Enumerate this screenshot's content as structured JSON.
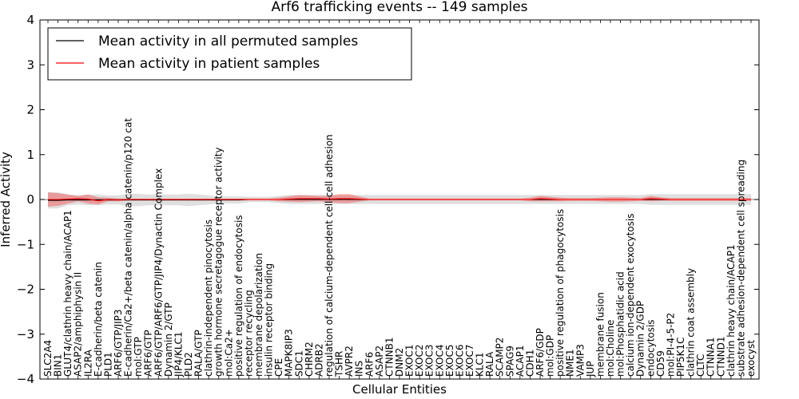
{
  "chart_data": {
    "type": "line",
    "title": "Arf6 trafficking events -- 149 samples",
    "xlabel": "Cellular Entities",
    "ylabel": "Inferred Activity",
    "ylim": [
      -4,
      4
    ],
    "yticks": [
      -4,
      -3,
      -2,
      -1,
      0,
      1,
      2,
      3,
      4
    ],
    "ytick_labels": [
      "−4",
      "−3",
      "−2",
      "−1",
      "0",
      "1",
      "2",
      "3",
      "4"
    ],
    "legend_position": "top-left",
    "categories": [
      "SLC2A4",
      "BIN1",
      "GLUT4/clathrin heavy chain/ACAP1",
      "ASAP2/amphiphysin II",
      "IL2RA",
      "E-cadherin/beta catenin",
      "PLD1",
      "ARF6/GTP/JIP3",
      "E-cadherin/Ca2+/beta catenin/alpha catenin/p120 cat",
      "mol:GTP",
      "ARF6/GTP",
      "ARF6/GTP/ARF6/GTP/JIP4/Dynactin Complex",
      "Dynamin 2/GTP",
      "JIP4/KLC1",
      "PLD2",
      "RALA/GTP",
      "clathrin-independent pinocytosis",
      "growth hormone secretagogue receptor activity",
      "mol:Ca2+",
      "positive regulation of endocytosis",
      "receptor recycling",
      "membrane depolarization",
      "insulin receptor binding",
      "CPE",
      "MAPK8IP3",
      "SDC1",
      "CHRM2",
      "ADRB2",
      "regulation of calcium-dependent cell-cell adhesion",
      "TSHR",
      "AVPR2",
      "INS",
      "ARF6",
      "ASAP2",
      "CTNNB1",
      "DNM2",
      "EXOC1",
      "EXOC2",
      "EXOC3",
      "EXOC4",
      "EXOC5",
      "EXOC6",
      "EXOC7",
      "KLC1",
      "RALA",
      "SCAMP2",
      "SPAG9",
      "ACAP1",
      "CDH1",
      "ARF6/GDP",
      "mol:GDP",
      "positive regulation of phagocytosis",
      "NME1",
      "VAMP3",
      "JUP",
      "membrane fusion",
      "mol:Choline",
      "mol:Phosphatidic acid",
      "calcium ion-dependent exocytosis",
      "Dynamin 2/GDP",
      "endocytosis",
      "CD59",
      "mol:PI-4-5-P2",
      "PIP5K1C",
      "clathrin coat assembly",
      "CLTC",
      "CTNNA1",
      "CTNND1",
      "clathrin heavy chain/ACAP1",
      "substrate adhesion-dependent cell spreading",
      "exocyst"
    ],
    "series": [
      {
        "name": "Mean activity in all permuted samples",
        "color": "#000000",
        "values": [
          -0.02,
          -0.02,
          -0.01,
          -0.01,
          -0.01,
          -0.01,
          -0.01,
          -0.01,
          -0.01,
          -0.01,
          -0.01,
          -0.01,
          -0.01,
          -0.01,
          -0.01,
          -0.01,
          -0.01,
          -0.01,
          -0.01,
          -0.01,
          0.0,
          0.0,
          0.0,
          0.0,
          0.0,
          0.0,
          0.0,
          0.0,
          0.0,
          0.0,
          0.0,
          0.0,
          0.0,
          0.0,
          0.0,
          0.0,
          0.0,
          0.0,
          0.0,
          0.0,
          0.0,
          0.0,
          0.0,
          0.0,
          0.0,
          0.0,
          0.0,
          0.0,
          0.0,
          0.0,
          0.0,
          0.0,
          0.0,
          0.0,
          0.0,
          0.0,
          0.0,
          0.0,
          0.0,
          0.0,
          0.0,
          0.0,
          0.0,
          0.0,
          0.0,
          0.0,
          0.0,
          0.0,
          0.0,
          0.0,
          0.0
        ],
        "band": [
          0.18,
          0.18,
          0.12,
          0.1,
          0.12,
          0.12,
          0.1,
          0.1,
          0.14,
          0.14,
          0.12,
          0.12,
          0.12,
          0.12,
          0.14,
          0.12,
          0.1,
          0.08,
          0.08,
          0.08,
          0.06,
          0.06,
          0.06,
          0.08,
          0.1,
          0.1,
          0.1,
          0.1,
          0.1,
          0.1,
          0.1,
          0.1,
          0.1,
          0.1,
          0.1,
          0.1,
          0.1,
          0.1,
          0.1,
          0.1,
          0.1,
          0.1,
          0.1,
          0.1,
          0.1,
          0.1,
          0.1,
          0.1,
          0.1,
          0.1,
          0.1,
          0.1,
          0.1,
          0.1,
          0.1,
          0.1,
          0.1,
          0.1,
          0.1,
          0.1,
          0.12,
          0.12,
          0.12,
          0.12,
          0.12,
          0.12,
          0.12,
          0.12,
          0.12,
          0.12,
          0.12
        ]
      },
      {
        "name": "Mean activity in patient samples",
        "color": "#ff0000",
        "values": [
          0.0,
          0.0,
          0.01,
          0.02,
          0.01,
          -0.03,
          0.0,
          -0.01,
          0.0,
          0.0,
          0.0,
          0.0,
          0.0,
          0.0,
          0.0,
          0.0,
          0.0,
          0.0,
          0.0,
          0.0,
          0.0,
          0.0,
          0.0,
          0.0,
          0.01,
          0.02,
          0.02,
          0.02,
          0.01,
          0.02,
          0.02,
          0.01,
          0.0,
          0.0,
          0.0,
          0.0,
          0.0,
          0.0,
          0.0,
          0.0,
          0.0,
          0.0,
          0.0,
          0.0,
          0.0,
          0.0,
          0.0,
          0.0,
          0.0,
          0.02,
          0.01,
          0.0,
          0.0,
          0.0,
          0.0,
          0.0,
          0.0,
          0.0,
          0.0,
          0.0,
          0.02,
          0.01,
          0.0,
          0.0,
          0.0,
          0.0,
          0.0,
          0.0,
          0.0,
          0.0,
          0.0
        ],
        "band": [
          0.16,
          0.14,
          0.1,
          0.06,
          0.1,
          0.08,
          0.04,
          0.03,
          0.02,
          0.02,
          0.02,
          0.02,
          0.02,
          0.02,
          0.02,
          0.02,
          0.02,
          0.02,
          0.02,
          0.02,
          0.02,
          0.02,
          0.02,
          0.04,
          0.06,
          0.08,
          0.07,
          0.06,
          0.07,
          0.1,
          0.1,
          0.06,
          0.02,
          0.02,
          0.02,
          0.02,
          0.02,
          0.02,
          0.02,
          0.02,
          0.02,
          0.02,
          0.02,
          0.02,
          0.02,
          0.02,
          0.02,
          0.02,
          0.04,
          0.06,
          0.05,
          0.04,
          0.03,
          0.03,
          0.03,
          0.04,
          0.05,
          0.05,
          0.04,
          0.03,
          0.06,
          0.04,
          0.03,
          0.03,
          0.03,
          0.03,
          0.03,
          0.03,
          0.03,
          0.03,
          0.03
        ]
      }
    ]
  }
}
